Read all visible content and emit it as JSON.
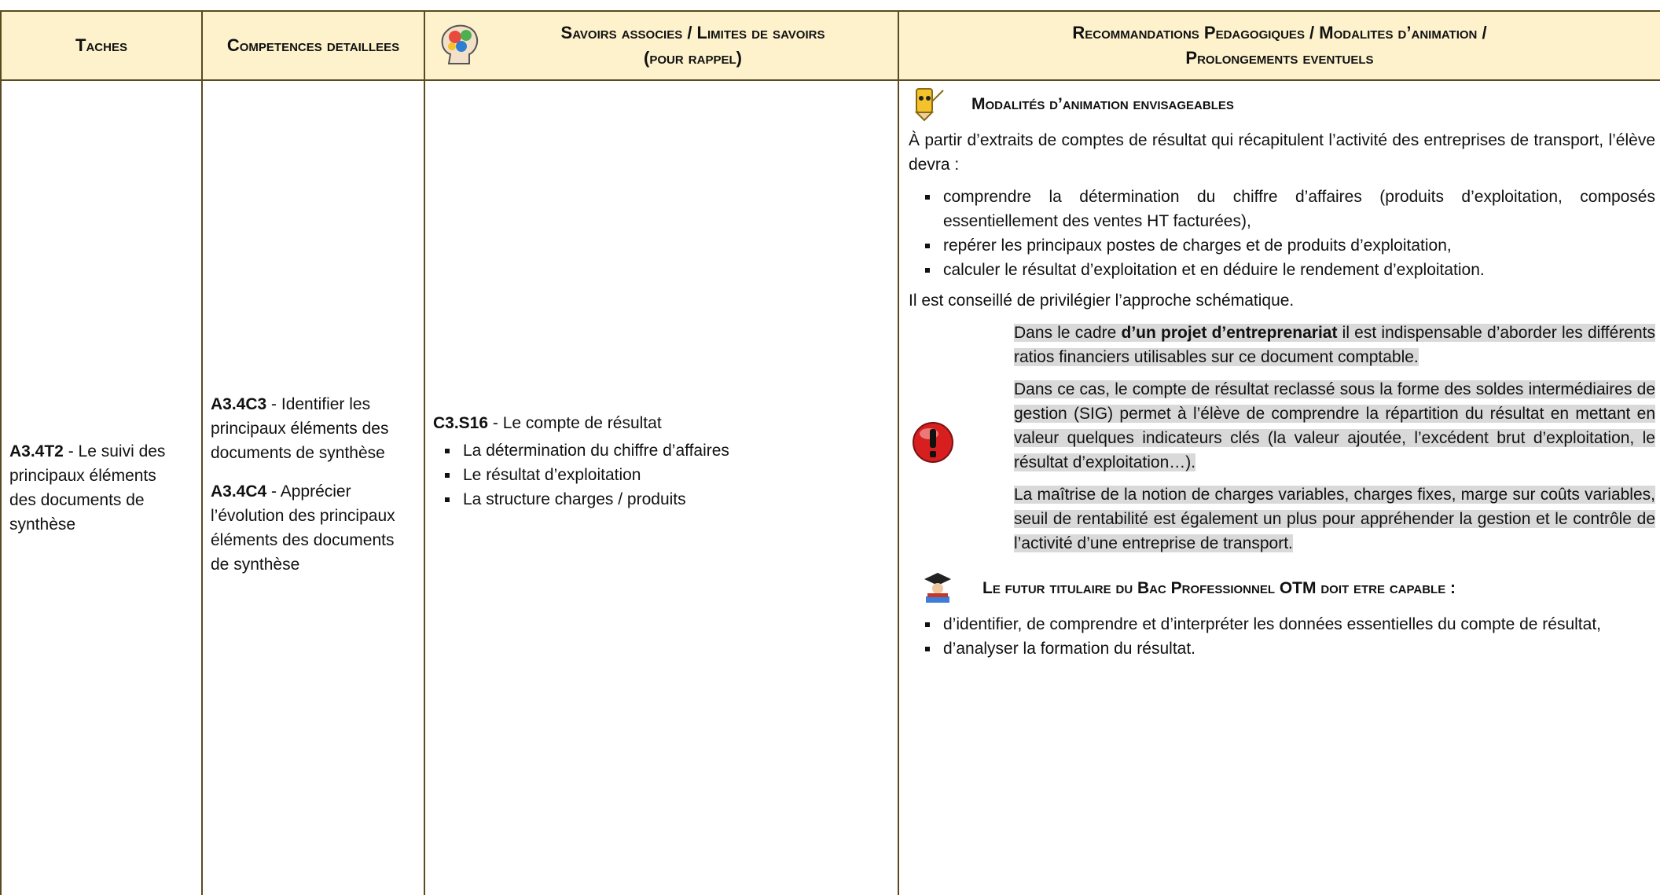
{
  "header": {
    "columns": [
      "Taches",
      "Competences detaillees",
      "Savoirs associes / Limites de savoirs",
      "(pour rappel)",
      "Recommandations Pedagogiques / Modalites d’animation /",
      "Prolongements eventuels"
    ]
  },
  "row": {
    "task": {
      "code": "A3.4T2",
      "text": " - Le suivi des principaux éléments des documents de synthèse"
    },
    "competences": [
      {
        "code": "A3.4C3",
        "text": " - Identifier les principaux éléments des documents de synthèse"
      },
      {
        "code": "A3.4C4",
        "text": " - Apprécier l’évolution des principaux éléments des documents de synthèse"
      }
    ],
    "savoirs": {
      "code": "C3.S16",
      "text": " - Le compte de résultat",
      "items": [
        "La détermination du chiffre d’affaires",
        "Le résultat d’exploitation",
        "La structure charges / produits"
      ]
    },
    "recommandations": {
      "heading1": "Modalités d’animation envisageables",
      "intro": "À partir d’extraits de comptes de résultat qui récapitulent l’activité des entreprises de transport, l’élève devra :",
      "items1": [
        "comprendre la détermination du chiffre d’affaires (produits d’exploitation, composés essentiellement des ventes HT facturées),",
        "repérer les principaux postes de charges et de produits d’exploitation,",
        "calculer le résultat d’exploitation et en déduire le rendement d’exploitation."
      ],
      "advice": "Il est conseillé de privilégier l’approche schématique.",
      "note1": {
        "before": "Dans le cadre ",
        "bold": "d’un projet d’entreprenariat",
        "after": " il est indispensable d’aborder les différents ratios financiers utilisables sur ce document comptable."
      },
      "note2": "Dans ce cas, le compte de résultat reclassé sous la forme des soldes intermédiaires de gestion (SIG) permet à l’élève de comprendre la répartition du résultat en mettant en valeur quelques indicateurs clés (la valeur ajoutée, l’excédent brut d’exploitation, le résultat d’exploitation…).",
      "note3": "La maîtrise de la notion de charges variables, charges fixes, marge sur coûts variables, seuil de rentabilité est également un plus pour appréhender la gestion et le contrôle de l’activité d’une entreprise de transport.",
      "heading2": "Le futur titulaire du Bac Professionnel OTM doit etre capable :",
      "items2": [
        "d’identifier, de comprendre et d’interpréter les données essentielles du compte de résultat,",
        "d’analyser la formation du résultat."
      ]
    }
  }
}
